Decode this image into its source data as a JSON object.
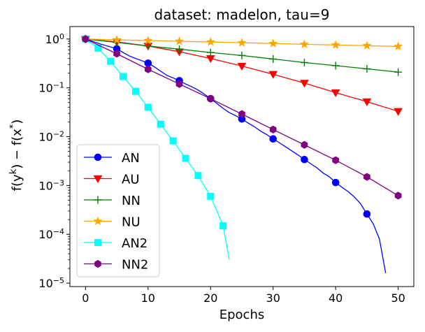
{
  "chart_data": {
    "type": "line",
    "title": "dataset: madelon, tau=9",
    "xlabel": "Epochs",
    "ylabel": "f(y^k) − f(x*)",
    "yscale": "log",
    "xlim": [
      -2.5,
      52.5
    ],
    "ylim": [
      8.5e-06,
      1.8
    ],
    "xticks": [
      0,
      10,
      20,
      30,
      40,
      50
    ],
    "yticks": [
      {
        "value": 1,
        "base": "10",
        "exp": "0"
      },
      {
        "value": 0.1,
        "base": "10",
        "exp": "−1"
      },
      {
        "value": 0.01,
        "base": "10",
        "exp": "−2"
      },
      {
        "value": 0.001,
        "base": "10",
        "exp": "−3"
      },
      {
        "value": 0.0001,
        "base": "10",
        "exp": "−4"
      },
      {
        "value": 1e-05,
        "base": "10",
        "exp": "−5"
      }
    ],
    "grid": false,
    "legend_position": "lower-left",
    "series": [
      {
        "name": "AN",
        "color": "#0000ff",
        "marker": "circle",
        "x": [
          0,
          1,
          2,
          3,
          4,
          5,
          6,
          7,
          8,
          9,
          10,
          11,
          12,
          13,
          14,
          15,
          16,
          17,
          18,
          19,
          20,
          21,
          22,
          23,
          24,
          25,
          26,
          27,
          28,
          29,
          30,
          31,
          32,
          33,
          34,
          35,
          36,
          37,
          38,
          39,
          40,
          41,
          42,
          43,
          44,
          45,
          46,
          47,
          48
        ],
        "y": [
          1.0,
          0.91,
          0.82,
          0.75,
          0.69,
          0.63,
          0.53,
          0.45,
          0.4,
          0.36,
          0.32,
          0.27,
          0.22,
          0.18,
          0.16,
          0.14,
          0.12,
          0.105,
          0.09,
          0.074,
          0.06,
          0.048,
          0.038,
          0.031,
          0.027,
          0.023,
          0.019,
          0.016,
          0.013,
          0.011,
          0.009,
          0.0075,
          0.0062,
          0.0051,
          0.0042,
          0.0034,
          0.0028,
          0.0023,
          0.0018,
          0.0015,
          0.00115,
          0.00092,
          0.00075,
          0.00058,
          0.00042,
          0.00026,
          0.000165,
          8e-05,
          1.6e-05
        ],
        "marker_x": [
          0,
          5,
          10,
          15,
          20,
          25,
          30,
          35,
          40,
          45
        ]
      },
      {
        "name": "AU",
        "color": "#ff0000",
        "marker": "triangle-down",
        "x": [
          0,
          5,
          10,
          15,
          20,
          25,
          30,
          35,
          40,
          45,
          50
        ],
        "y": [
          1.0,
          0.87,
          0.72,
          0.55,
          0.4,
          0.28,
          0.19,
          0.125,
          0.08,
          0.052,
          0.033
        ],
        "marker_x": [
          0,
          5,
          10,
          15,
          20,
          25,
          30,
          35,
          40,
          45,
          50
        ]
      },
      {
        "name": "NN",
        "color": "#008000",
        "marker": "plus",
        "x": [
          0,
          5,
          10,
          15,
          20,
          25,
          30,
          35,
          40,
          45,
          50
        ],
        "y": [
          1.0,
          0.85,
          0.72,
          0.62,
          0.53,
          0.46,
          0.39,
          0.33,
          0.285,
          0.245,
          0.21
        ],
        "marker_x": [
          0,
          5,
          10,
          15,
          20,
          25,
          30,
          35,
          40,
          45,
          50
        ]
      },
      {
        "name": "NU",
        "color": "#ffa500",
        "marker": "star",
        "x": [
          0,
          5,
          10,
          15,
          20,
          25,
          30,
          35,
          40,
          45,
          50
        ],
        "y": [
          1.0,
          0.96,
          0.93,
          0.9,
          0.87,
          0.84,
          0.81,
          0.78,
          0.755,
          0.73,
          0.705
        ],
        "marker_x": [
          0,
          5,
          10,
          15,
          20,
          25,
          30,
          35,
          40,
          45,
          50
        ]
      },
      {
        "name": "AN2",
        "color": "#00ffff",
        "marker": "square",
        "x": [
          0,
          2,
          4,
          6,
          8,
          10,
          12,
          14,
          16,
          18,
          20,
          22,
          23
        ],
        "y": [
          1.0,
          0.65,
          0.35,
          0.17,
          0.085,
          0.04,
          0.018,
          0.0082,
          0.0036,
          0.0016,
          0.0006,
          0.00015,
          3e-05
        ],
        "marker_x": [
          0,
          2,
          4,
          6,
          8,
          10,
          12,
          14,
          16,
          18,
          20,
          22
        ]
      },
      {
        "name": "NN2",
        "color": "#800080",
        "marker": "hexagon",
        "x": [
          0,
          5,
          10,
          15,
          20,
          25,
          30,
          35,
          40,
          45,
          50
        ],
        "y": [
          1.0,
          0.5,
          0.24,
          0.12,
          0.06,
          0.029,
          0.014,
          0.0068,
          0.0033,
          0.0015,
          0.00062
        ],
        "marker_x": [
          0,
          5,
          10,
          15,
          20,
          25,
          30,
          35,
          40,
          45,
          50
        ]
      }
    ]
  }
}
